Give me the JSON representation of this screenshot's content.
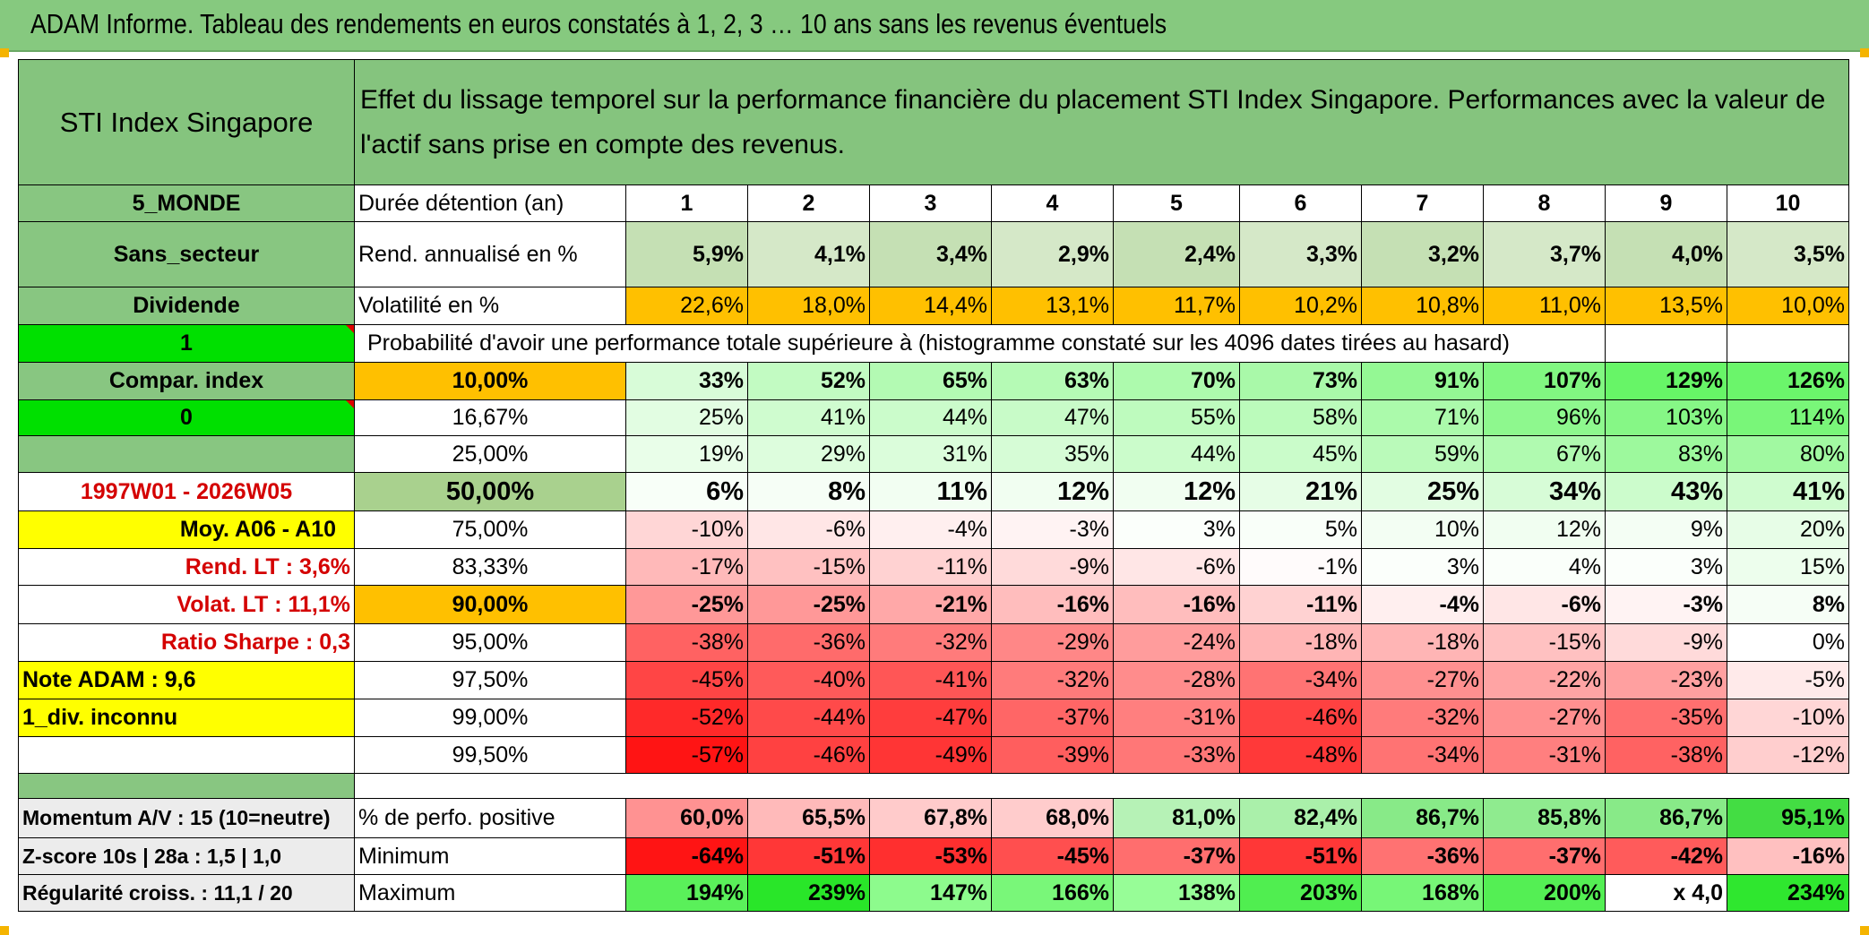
{
  "title": "ADAM Informe. Tableau des rendements en euros constatés à 1, 2, 3 … 10 ans sans les revenus éventuels",
  "header": {
    "name": "STI Index Singapore",
    "description": "Effet du lissage temporel sur la performance financière du placement STI Index Singapore. Performances avec la valeur de l'actif sans prise en compte des revenus."
  },
  "left": {
    "zone": "5_MONDE",
    "sector": "Sans_secteur",
    "dividend": "Dividende",
    "one": "1",
    "compar": "Compar. index",
    "zero": "0",
    "period": "1997W01 - 2026W05",
    "moy": "Moy. A06 - A10",
    "rend_lt": "Rend. LT :   3,6%",
    "volat_lt": "Volat. LT :   11,1%",
    "sharpe": "Ratio Sharpe :    0,3",
    "note": "Note ADAM : 9,6",
    "div": "1_div. inconnu",
    "momentum": "Momentum A/V : 15 (10=neutre)",
    "zscore": "Z-score 10s | 28a : 1,5 | 1,0",
    "regularite": "Régularité croiss. : 11,1 / 20"
  },
  "rows": {
    "duree_label": "Durée détention (an)",
    "durations": [
      "1",
      "2",
      "3",
      "4",
      "5",
      "6",
      "7",
      "8",
      "9",
      "10"
    ],
    "rend_label": "Rend. annualisé en %",
    "rend": [
      "5,9%",
      "4,1%",
      "3,4%",
      "2,9%",
      "2,4%",
      "3,3%",
      "3,2%",
      "3,7%",
      "4,0%",
      "3,5%"
    ],
    "vol_label": "Volatilité en %",
    "vol": [
      "22,6%",
      "18,0%",
      "14,4%",
      "13,1%",
      "11,7%",
      "10,2%",
      "10,8%",
      "11,0%",
      "13,5%",
      "10,0%"
    ],
    "proba_label": "Probabilité d'avoir une performance totale supérieure à (histogramme constaté sur les 4096 dates tirées au hasard)",
    "quantiles": [
      {
        "q": "10,00%",
        "v": [
          "33%",
          "52%",
          "65%",
          "63%",
          "70%",
          "73%",
          "91%",
          "107%",
          "129%",
          "126%"
        ]
      },
      {
        "q": "16,67%",
        "v": [
          "25%",
          "41%",
          "44%",
          "47%",
          "55%",
          "58%",
          "71%",
          "96%",
          "103%",
          "114%"
        ]
      },
      {
        "q": "25,00%",
        "v": [
          "19%",
          "29%",
          "31%",
          "35%",
          "44%",
          "45%",
          "59%",
          "67%",
          "83%",
          "80%"
        ]
      },
      {
        "q": "50,00%",
        "v": [
          "6%",
          "8%",
          "11%",
          "12%",
          "12%",
          "21%",
          "25%",
          "34%",
          "43%",
          "41%"
        ]
      },
      {
        "q": "75,00%",
        "v": [
          "-10%",
          "-6%",
          "-4%",
          "-3%",
          "3%",
          "5%",
          "10%",
          "12%",
          "9%",
          "20%"
        ]
      },
      {
        "q": "83,33%",
        "v": [
          "-17%",
          "-15%",
          "-11%",
          "-9%",
          "-6%",
          "-1%",
          "3%",
          "4%",
          "3%",
          "15%"
        ]
      },
      {
        "q": "90,00%",
        "v": [
          "-25%",
          "-25%",
          "-21%",
          "-16%",
          "-16%",
          "-11%",
          "-4%",
          "-6%",
          "-3%",
          "8%"
        ]
      },
      {
        "q": "95,00%",
        "v": [
          "-38%",
          "-36%",
          "-32%",
          "-29%",
          "-24%",
          "-18%",
          "-18%",
          "-15%",
          "-9%",
          "0%"
        ]
      },
      {
        "q": "97,50%",
        "v": [
          "-45%",
          "-40%",
          "-41%",
          "-32%",
          "-28%",
          "-34%",
          "-27%",
          "-22%",
          "-23%",
          "-5%"
        ]
      },
      {
        "q": "99,00%",
        "v": [
          "-52%",
          "-44%",
          "-47%",
          "-37%",
          "-31%",
          "-46%",
          "-32%",
          "-27%",
          "-35%",
          "-10%"
        ]
      },
      {
        "q": "99,50%",
        "v": [
          "-57%",
          "-46%",
          "-49%",
          "-39%",
          "-33%",
          "-48%",
          "-34%",
          "-31%",
          "-38%",
          "-12%"
        ]
      }
    ],
    "positive_label": "% de perfo. positive",
    "positive": [
      "60,0%",
      "65,5%",
      "67,8%",
      "68,0%",
      "81,0%",
      "82,4%",
      "86,7%",
      "85,8%",
      "86,7%",
      "95,1%"
    ],
    "min_label": "Minimum",
    "min": [
      "-64%",
      "-51%",
      "-53%",
      "-45%",
      "-37%",
      "-51%",
      "-36%",
      "-37%",
      "-42%",
      "-16%"
    ],
    "max_label": "Maximum",
    "max": [
      "194%",
      "239%",
      "147%",
      "166%",
      "138%",
      "203%",
      "168%",
      "200%",
      "x 4,0",
      "234%"
    ]
  },
  "colors": {
    "header_green": "#85c47e",
    "title_green": "#86c97f",
    "bright_green": "#00e000",
    "orange": "#ffc000",
    "yellow": "#ffff00",
    "red_text": "#d40000"
  }
}
